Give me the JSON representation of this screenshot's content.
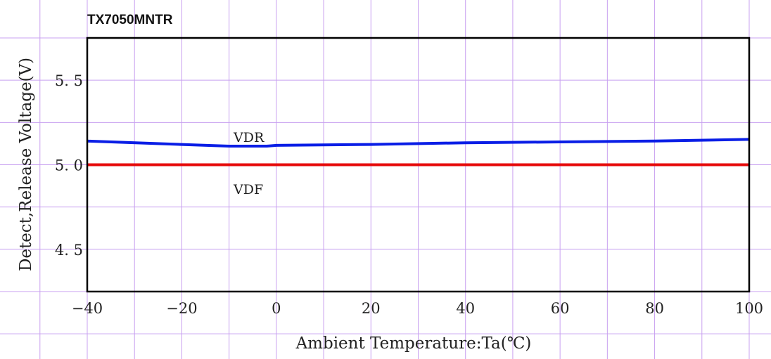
{
  "chart_data": {
    "type": "line",
    "title": "TX7050MNTR",
    "xlabel": "Ambient Temperature:Ta(℃)",
    "ylabel": "Detect,Release Voltage(V)",
    "xlim": [
      -40,
      100
    ],
    "ylim": [
      4.25,
      5.75
    ],
    "x_major_ticks": [
      -40,
      -20,
      0,
      20,
      40,
      60,
      80,
      100
    ],
    "x_tick_labels": [
      "-40",
      "-20",
      "0",
      "20",
      "40",
      "60",
      "80",
      "100"
    ],
    "y_major_ticks": [
      4.5,
      5.0,
      5.5
    ],
    "y_tick_labels": [
      "4.5",
      "5.0",
      "5.5"
    ],
    "x_grid_step": 10,
    "y_grid_step": 0.25,
    "grid": true,
    "colors": {
      "grid": "#c8a0f0",
      "frame": "#000000"
    },
    "series": [
      {
        "name": "VDR",
        "color": "#0a1ee6",
        "x": [
          -40,
          -10,
          -2,
          0,
          20,
          40,
          60,
          80,
          100
        ],
        "y": [
          5.14,
          5.11,
          5.11,
          5.115,
          5.12,
          5.13,
          5.135,
          5.14,
          5.15
        ]
      },
      {
        "name": "VDF",
        "color": "#e60a0a",
        "x": [
          -40,
          100
        ],
        "y": [
          5.0,
          5.0
        ]
      }
    ]
  }
}
